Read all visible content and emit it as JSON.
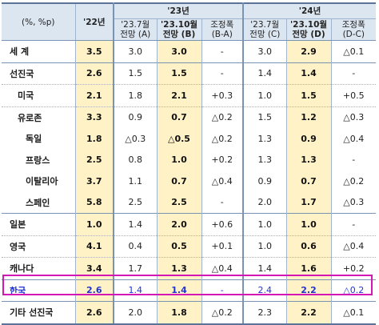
{
  "header": {
    "unit": "(%, %p)",
    "y22": "'22년",
    "y23": "'23년",
    "y24": "'24년",
    "cols23": [
      "'23.7월\n전망 (A)",
      "'23.10월\n전망 (B)",
      "조정폭\n(B-A)"
    ],
    "cols24": [
      "'23.7월\n전망 (C)",
      "'23.10월\n전망 (D)",
      "조정폭\n(D-C)"
    ]
  },
  "rows": [
    {
      "label": "세 계",
      "v": [
        "3.5",
        "3.0",
        "3.0",
        "-",
        "3.0",
        "2.9",
        "△0.1"
      ]
    },
    {
      "label": "선진국",
      "v": [
        "2.6",
        "1.5",
        "1.5",
        "-",
        "1.4",
        "1.4",
        "-"
      ]
    },
    {
      "label": "미국",
      "v": [
        "2.1",
        "1.8",
        "2.1",
        "+0.3",
        "1.0",
        "1.5",
        "+0.5"
      ]
    },
    {
      "label": "유로존",
      "v": [
        "3.3",
        "0.9",
        "0.7",
        "△0.2",
        "1.5",
        "1.2",
        "△0.3"
      ]
    },
    {
      "label": "독일",
      "v": [
        "1.8",
        "△0.3",
        "△0.5",
        "△0.2",
        "1.3",
        "0.9",
        "△0.4"
      ]
    },
    {
      "label": "프랑스",
      "v": [
        "2.5",
        "0.8",
        "1.0",
        "+0.2",
        "1.3",
        "1.3",
        "-"
      ]
    },
    {
      "label": "이탈리아",
      "v": [
        "3.7",
        "1.1",
        "0.7",
        "△0.4",
        "0.9",
        "0.7",
        "△0.2"
      ]
    },
    {
      "label": "스페인",
      "v": [
        "5.8",
        "2.5",
        "2.5",
        "-",
        "2.0",
        "1.7",
        "△0.3"
      ]
    },
    {
      "label": "일본",
      "v": [
        "1.0",
        "1.4",
        "2.0",
        "+0.6",
        "1.0",
        "1.0",
        "-"
      ]
    },
    {
      "label": "영국",
      "v": [
        "4.1",
        "0.4",
        "0.5",
        "+0.1",
        "1.0",
        "0.6",
        "△0.4"
      ]
    },
    {
      "label": "캐나다",
      "v": [
        "3.4",
        "1.7",
        "1.3",
        "△0.4",
        "1.4",
        "1.6",
        "+0.2"
      ]
    },
    {
      "label": "한국",
      "v": [
        "2.6",
        "1.4",
        "1.4",
        "-",
        "2.4",
        "2.2",
        "△0.2"
      ]
    },
    {
      "label": "기타 선진국",
      "v": [
        "2.6",
        "2.0",
        "1.8",
        "△0.2",
        "2.3",
        "2.2",
        "△0.1"
      ]
    }
  ],
  "colors": {
    "header_bg": "#dce6f1",
    "highlight_bg": "#fff2c6",
    "korea_text": "#1f34d8",
    "korea_box": "#d416b4"
  }
}
